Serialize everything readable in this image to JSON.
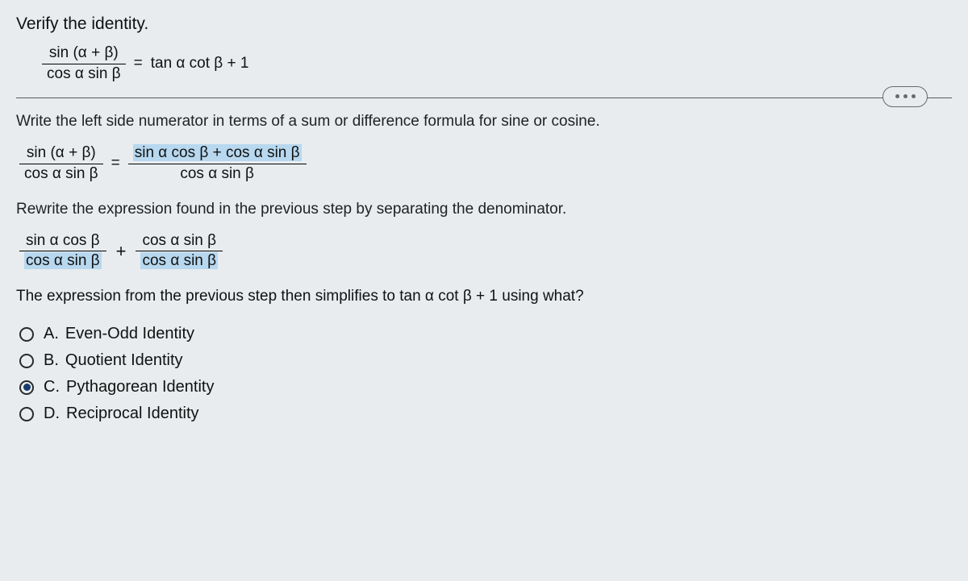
{
  "heading": "Verify the identity.",
  "identity": {
    "lhs_num": "sin (α + β)",
    "lhs_den": "cos  α sin  β",
    "rhs": "tan  α cot  β + 1"
  },
  "instr1": "Write the left side numerator in terms of a sum or difference formula for sine or cosine.",
  "step1": {
    "l_num": "sin (α + β)",
    "l_den": "cos  α sin  β",
    "r_num": "sin α cos β +  cos α sin β",
    "r_den": "cos  α sin  β"
  },
  "instr2": "Rewrite the expression found in the previous step by separating the denominator.",
  "step2": {
    "a_num": "sin  α cos  β",
    "a_den": "cos α sin β",
    "b_num": "cos  α sin  β",
    "b_den": "cos α sin β"
  },
  "question_pre": "The expression from the previous step then simplifies to ",
  "question_expr": "tan  α cot  β + 1",
  "question_post": " using what?",
  "options": [
    {
      "letter": "A.",
      "label": "Even-Odd Identity",
      "selected": false
    },
    {
      "letter": "B.",
      "label": "Quotient Identity",
      "selected": false
    },
    {
      "letter": "C.",
      "label": "Pythagorean Identity",
      "selected": true
    },
    {
      "letter": "D.",
      "label": "Reciprocal Identity",
      "selected": false
    }
  ]
}
